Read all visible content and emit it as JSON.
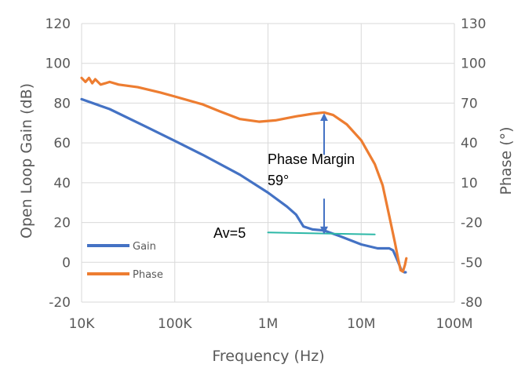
{
  "chart_data": {
    "type": "line",
    "xlabel": "Frequency (Hz)",
    "ylabel": "Open Loop Gain (dB)",
    "y2label": "Phase (°)",
    "x_scale": "log",
    "xlim": [
      10000,
      100000000
    ],
    "ylim": [
      -20,
      120
    ],
    "y2lim": [
      -80,
      130
    ],
    "grid": true,
    "legend_position": "bottom-left",
    "x_ticks": [
      {
        "value": 10000,
        "label": "10K"
      },
      {
        "value": 100000,
        "label": "100K"
      },
      {
        "value": 1000000,
        "label": "1M"
      },
      {
        "value": 10000000,
        "label": "10M"
      },
      {
        "value": 100000000,
        "label": "100M"
      }
    ],
    "y_ticks": [
      {
        "value": 120,
        "label": "120"
      },
      {
        "value": 100,
        "label": "100"
      },
      {
        "value": 80,
        "label": "80"
      },
      {
        "value": 60,
        "label": "60"
      },
      {
        "value": 40,
        "label": "40"
      },
      {
        "value": 20,
        "label": "20"
      },
      {
        "value": 0,
        "label": "0"
      },
      {
        "value": -20,
        "label": "-20"
      }
    ],
    "y2_ticks": [
      {
        "value": 130,
        "label": "130"
      },
      {
        "value": 100,
        "label": "100"
      },
      {
        "value": 70,
        "label": "70"
      },
      {
        "value": 40,
        "label": "40"
      },
      {
        "value": 10,
        "label": "10"
      },
      {
        "value": -20,
        "label": "-20"
      },
      {
        "value": -50,
        "label": "-50"
      },
      {
        "value": -80,
        "label": "-80"
      }
    ],
    "series": [
      {
        "name": "Gain",
        "axis": "left",
        "color": "#4472C4",
        "points": [
          [
            10000,
            82
          ],
          [
            20000,
            77
          ],
          [
            50000,
            68
          ],
          [
            100000,
            61
          ],
          [
            200000,
            54
          ],
          [
            500000,
            44
          ],
          [
            1000000,
            35
          ],
          [
            1600000,
            28
          ],
          [
            2000000,
            24
          ],
          [
            2400000,
            18
          ],
          [
            3000000,
            16.5
          ],
          [
            4000000,
            16
          ],
          [
            6000000,
            13
          ],
          [
            10000000,
            9
          ],
          [
            15000000,
            7
          ],
          [
            20000000,
            7
          ],
          [
            22000000,
            6
          ],
          [
            25000000,
            0
          ],
          [
            27000000,
            -4
          ],
          [
            29000000,
            -5
          ],
          [
            30000000,
            -5
          ]
        ]
      },
      {
        "name": "Phase",
        "axis": "right",
        "color": "#ED7D31",
        "points": [
          [
            10000,
            89
          ],
          [
            11000,
            86
          ],
          [
            12000,
            89
          ],
          [
            13000,
            85
          ],
          [
            14000,
            88
          ],
          [
            16000,
            84
          ],
          [
            18000,
            85
          ],
          [
            20000,
            86
          ],
          [
            25000,
            84
          ],
          [
            40000,
            82
          ],
          [
            70000,
            78
          ],
          [
            100000,
            75
          ],
          [
            200000,
            69
          ],
          [
            300000,
            64
          ],
          [
            500000,
            58
          ],
          [
            800000,
            56
          ],
          [
            1200000,
            57
          ],
          [
            2000000,
            60
          ],
          [
            3000000,
            62
          ],
          [
            4000000,
            63
          ],
          [
            5000000,
            61
          ],
          [
            7000000,
            54
          ],
          [
            10000000,
            42
          ],
          [
            14000000,
            24
          ],
          [
            17000000,
            8
          ],
          [
            20000000,
            -15
          ],
          [
            23000000,
            -35
          ],
          [
            25000000,
            -48
          ],
          [
            26500000,
            -56
          ],
          [
            28000000,
            -57
          ],
          [
            29500000,
            -52
          ],
          [
            30500000,
            -47
          ]
        ]
      },
      {
        "name": "",
        "axis": "left",
        "color": "#2DB8A7",
        "points": [
          [
            1000000,
            15
          ],
          [
            14000000,
            14
          ]
        ]
      }
    ],
    "annotations": [
      {
        "text": "Phase Margin",
        "position": "center"
      },
      {
        "text": "59°",
        "position": "center"
      },
      {
        "text": "Av=5",
        "position": "left of teal line"
      }
    ],
    "arrows": [
      {
        "x": 4000000,
        "from_y": 54,
        "to_y": 73,
        "axis": "left",
        "direction": "up"
      },
      {
        "x": 4000000,
        "from_y": 32,
        "to_y": 16,
        "axis": "left",
        "direction": "down"
      }
    ]
  }
}
